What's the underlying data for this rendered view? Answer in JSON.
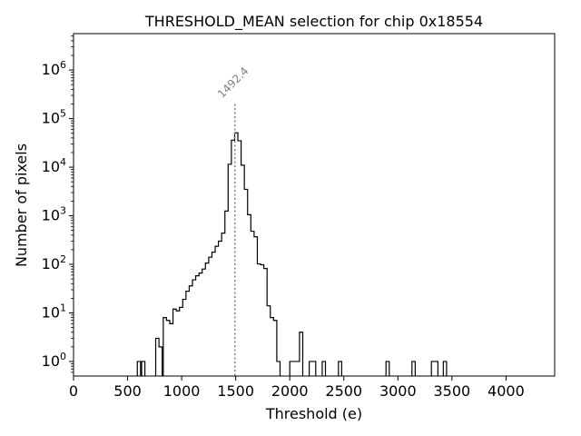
{
  "chart_data": {
    "type": "histogram",
    "title": "THRESHOLD_MEAN selection for chip 0x18554",
    "xlabel": "Threshold (e)",
    "ylabel": "Number of pixels",
    "xlim": [
      0,
      4450
    ],
    "ylim_log10": [
      -0.3,
      6.75
    ],
    "yscale": "log",
    "grid": false,
    "x_ticks": [
      0,
      500,
      1000,
      1500,
      2000,
      2500,
      3000,
      3500,
      4000
    ],
    "x_tick_labels": [
      "0",
      "500",
      "1000",
      "1500",
      "2000",
      "2500",
      "3000",
      "3500",
      "4000"
    ],
    "y_ticks": [
      1,
      10,
      100,
      1000,
      10000,
      100000,
      1000000
    ],
    "y_tick_base": "10",
    "y_tick_exponents": [
      "0",
      "1",
      "2",
      "3",
      "4",
      "5",
      "6"
    ],
    "bins": [
      [
        590,
        620,
        1
      ],
      [
        630,
        660,
        1
      ],
      [
        760,
        790,
        3
      ],
      [
        790,
        820,
        2
      ],
      [
        830,
        860,
        8
      ],
      [
        860,
        890,
        7
      ],
      [
        890,
        920,
        6
      ],
      [
        920,
        950,
        12
      ],
      [
        950,
        980,
        11
      ],
      [
        980,
        1010,
        13
      ],
      [
        1010,
        1040,
        19
      ],
      [
        1040,
        1070,
        28
      ],
      [
        1070,
        1100,
        36
      ],
      [
        1100,
        1130,
        48
      ],
      [
        1130,
        1160,
        58
      ],
      [
        1160,
        1190,
        66
      ],
      [
        1190,
        1220,
        80
      ],
      [
        1220,
        1250,
        106
      ],
      [
        1250,
        1280,
        140
      ],
      [
        1280,
        1310,
        178
      ],
      [
        1310,
        1340,
        235
      ],
      [
        1340,
        1370,
        300
      ],
      [
        1370,
        1400,
        440
      ],
      [
        1400,
        1430,
        1250
      ],
      [
        1430,
        1460,
        11500
      ],
      [
        1460,
        1490,
        36000
      ],
      [
        1490,
        1520,
        51000
      ],
      [
        1520,
        1550,
        35000
      ],
      [
        1550,
        1580,
        11000
      ],
      [
        1580,
        1610,
        3500
      ],
      [
        1610,
        1640,
        1050
      ],
      [
        1640,
        1670,
        480
      ],
      [
        1670,
        1700,
        370
      ],
      [
        1700,
        1730,
        102
      ],
      [
        1730,
        1760,
        98
      ],
      [
        1760,
        1790,
        82
      ],
      [
        1790,
        1820,
        14
      ],
      [
        1820,
        1850,
        8
      ],
      [
        1850,
        1880,
        7
      ],
      [
        1880,
        1910,
        1
      ],
      [
        2000,
        2030,
        1
      ],
      [
        2030,
        2060,
        1
      ],
      [
        2060,
        2090,
        1
      ],
      [
        2090,
        2120,
        4
      ],
      [
        2180,
        2210,
        1
      ],
      [
        2210,
        2240,
        1
      ],
      [
        2300,
        2330,
        1
      ],
      [
        2450,
        2480,
        1
      ],
      [
        2890,
        2920,
        1
      ],
      [
        3130,
        3160,
        1
      ],
      [
        3310,
        3340,
        1
      ],
      [
        3340,
        3370,
        1
      ],
      [
        3420,
        3450,
        1
      ]
    ],
    "annotation": {
      "label": "1492.4",
      "x": 1492.4,
      "line_top_y": 200000,
      "color": "#808080"
    }
  }
}
